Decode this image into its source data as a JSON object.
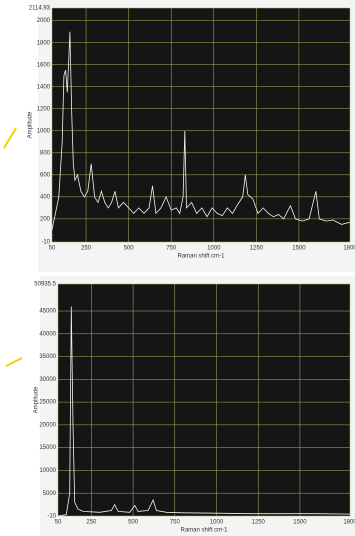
{
  "chart_data": [
    {
      "type": "line",
      "x_label": "Raman shift cm-1",
      "y_label": "Amplitude",
      "color": "#f2f2f2",
      "grid": true,
      "grid_color": "#b8b060",
      "xlim": [
        50,
        1800
      ],
      "xticks": [
        50,
        250,
        500,
        750,
        1000,
        1250,
        1500,
        1800
      ],
      "ylim": [
        -10,
        2114.93
      ],
      "yticks": [
        -10,
        200,
        400,
        600,
        800,
        1000,
        1200,
        1400,
        1600,
        1800,
        2000,
        2114.93
      ],
      "x": [
        50,
        70,
        90,
        110,
        120,
        130,
        140,
        150,
        155,
        165,
        175,
        185,
        200,
        220,
        240,
        260,
        280,
        300,
        320,
        340,
        360,
        380,
        400,
        420,
        440,
        470,
        500,
        530,
        560,
        590,
        620,
        640,
        660,
        690,
        720,
        750,
        780,
        800,
        820,
        830,
        840,
        870,
        900,
        930,
        960,
        990,
        1020,
        1050,
        1080,
        1110,
        1140,
        1170,
        1185,
        1200,
        1230,
        1260,
        1290,
        1320,
        1350,
        1380,
        1410,
        1450,
        1480,
        1520,
        1560,
        1600,
        1620,
        1660,
        1700,
        1750,
        1800
      ],
      "values": [
        100,
        250,
        400,
        900,
        1500,
        1550,
        1350,
        1700,
        1900,
        1200,
        700,
        550,
        600,
        450,
        400,
        450,
        700,
        400,
        350,
        450,
        350,
        300,
        350,
        450,
        300,
        350,
        300,
        250,
        300,
        250,
        300,
        500,
        250,
        300,
        400,
        280,
        300,
        250,
        400,
        1000,
        300,
        350,
        250,
        300,
        220,
        300,
        250,
        230,
        300,
        250,
        330,
        400,
        600,
        420,
        380,
        250,
        300,
        250,
        220,
        240,
        200,
        320,
        200,
        180,
        200,
        450,
        200,
        180,
        190,
        150,
        170
      ]
    },
    {
      "type": "line",
      "x_label": "Raman shift cm-1",
      "y_label": "Amplitude",
      "color": "#f2f2f2",
      "grid": true,
      "grid_color": "#b8b060",
      "xlim": [
        50,
        1800
      ],
      "xticks": [
        50,
        250,
        500,
        750,
        1000,
        1250,
        1500,
        1800
      ],
      "ylim": [
        -10,
        50935.5
      ],
      "yticks": [
        -10,
        5000,
        10000,
        15000,
        20000,
        25000,
        30000,
        35000,
        40000,
        45000,
        50935.5
      ],
      "x": [
        50,
        100,
        120,
        130,
        140,
        150,
        170,
        200,
        300,
        370,
        390,
        410,
        480,
        510,
        530,
        590,
        620,
        640,
        700,
        800,
        1000,
        1200,
        1400,
        1600,
        1800
      ],
      "values": [
        0,
        300,
        5000,
        46000,
        20000,
        3000,
        1500,
        1000,
        800,
        1200,
        2500,
        1000,
        800,
        2300,
        1000,
        1200,
        3500,
        1200,
        800,
        700,
        600,
        500,
        500,
        500,
        400
      ]
    }
  ]
}
